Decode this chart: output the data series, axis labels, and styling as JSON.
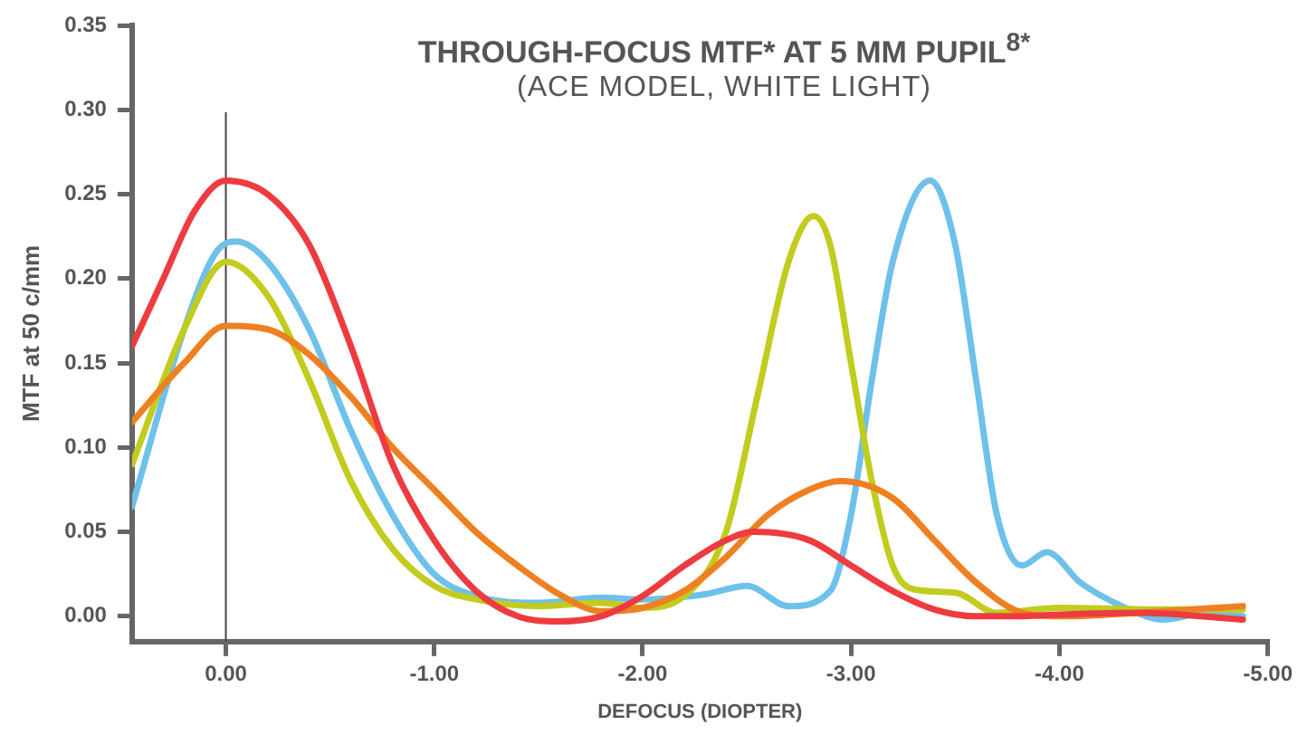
{
  "chart_data": {
    "type": "line",
    "title": "THROUGH-FOCUS MTF* AT 5 MM PUPIL$^{8*}$",
    "subtitle": "(ACE MODEL, WHITE LIGHT)",
    "xlabel": "DEFOCUS (DIOPTER)",
    "ylabel": "MTF at 50 c/mm",
    "xlim": [
      0.45,
      -5
    ],
    "xticks": [
      {
        "value": 0,
        "label": "0.00"
      },
      {
        "value": -1,
        "label": "-1.00"
      },
      {
        "value": -2,
        "label": "-2.00"
      },
      {
        "value": -3,
        "label": "-3.00"
      },
      {
        "value": -4,
        "label": "-4.00"
      },
      {
        "value": -5,
        "label": "-5.00"
      }
    ],
    "ylim": [
      -0.015,
      0.35
    ],
    "yticks": [
      {
        "value": 0,
        "label": "0.00"
      },
      {
        "value": 0.05,
        "label": "0.05"
      },
      {
        "value": 0.1,
        "label": "0.10"
      },
      {
        "value": 0.15,
        "label": "0.15"
      },
      {
        "value": 0.2,
        "label": "0.20"
      },
      {
        "value": 0.25,
        "label": "0.25"
      },
      {
        "value": 0.3,
        "label": "0.30"
      },
      {
        "value": 0.35,
        "label": "0.35"
      }
    ],
    "grid": false,
    "legend": false,
    "marker": "none",
    "line_style": "solid",
    "ref_lines": [
      {
        "axis": "x",
        "value": 0,
        "color": "#444444"
      }
    ],
    "series": [
      {
        "color": "#ee3b40",
        "x": [
          0.45,
          0.3,
          0.15,
          0,
          -0.2,
          -0.4,
          -0.6,
          -0.8,
          -1.0,
          -1.2,
          -1.4,
          -1.6,
          -1.8,
          -2.0,
          -2.2,
          -2.4,
          -2.53,
          -2.8,
          -3.0,
          -3.2,
          -3.4,
          -3.6,
          -3.8,
          -4.0,
          -4.4,
          -4.88
        ],
        "values": [
          0.16,
          0.2,
          0.24,
          0.258,
          0.25,
          0.22,
          0.16,
          0.09,
          0.045,
          0.015,
          0.0,
          -0.003,
          0.0,
          0.012,
          0.03,
          0.045,
          0.05,
          0.045,
          0.03,
          0.015,
          0.004,
          0.0,
          0.0,
          0.001,
          0.002,
          -0.002
        ]
      },
      {
        "color": "#ef8022",
        "x": [
          0.45,
          0.2,
          0,
          -0.2,
          -0.4,
          -0.6,
          -0.8,
          -1.0,
          -1.2,
          -1.4,
          -1.6,
          -1.8,
          -2.0,
          -2.2,
          -2.4,
          -2.6,
          -2.8,
          -2.95,
          -3.2,
          -3.4,
          -3.6,
          -3.8,
          -4.0,
          -4.5,
          -4.88
        ],
        "values": [
          0.115,
          0.15,
          0.172,
          0.17,
          0.155,
          0.13,
          0.1,
          0.075,
          0.05,
          0.03,
          0.013,
          0.003,
          0.005,
          0.015,
          0.035,
          0.06,
          0.075,
          0.08,
          0.07,
          0.045,
          0.02,
          0.003,
          0.0,
          0.003,
          0.006
        ]
      },
      {
        "color": "#c2cc1f",
        "x": [
          0.45,
          0.2,
          0,
          -0.2,
          -0.4,
          -0.6,
          -0.8,
          -1.0,
          -1.2,
          -1.5,
          -1.8,
          -2.0,
          -2.2,
          -2.4,
          -2.55,
          -2.7,
          -2.82,
          -2.9,
          -3.0,
          -3.1,
          -3.2,
          -3.3,
          -3.5,
          -3.7,
          -4.0,
          -4.5,
          -4.88
        ],
        "values": [
          0.09,
          0.17,
          0.21,
          0.19,
          0.14,
          0.08,
          0.04,
          0.018,
          0.01,
          0.006,
          0.008,
          0.005,
          0.012,
          0.05,
          0.13,
          0.21,
          0.237,
          0.22,
          0.15,
          0.08,
          0.03,
          0.016,
          0.014,
          0.002,
          0.005,
          0.004,
          0.004
        ]
      },
      {
        "color": "#6ec1ea",
        "x": [
          0.45,
          0.2,
          0.05,
          -0.05,
          -0.2,
          -0.4,
          -0.6,
          -0.8,
          -1.0,
          -1.2,
          -1.5,
          -1.8,
          -2.0,
          -2.3,
          -2.5,
          -2.7,
          -2.9,
          -3.0,
          -3.1,
          -3.2,
          -3.38,
          -3.5,
          -3.6,
          -3.7,
          -3.82,
          -3.94,
          -4.1,
          -4.3,
          -4.5,
          -4.7,
          -4.88
        ],
        "values": [
          0.065,
          0.17,
          0.215,
          0.222,
          0.21,
          0.17,
          0.11,
          0.06,
          0.025,
          0.012,
          0.008,
          0.011,
          0.01,
          0.013,
          0.018,
          0.006,
          0.015,
          0.06,
          0.14,
          0.21,
          0.258,
          0.22,
          0.14,
          0.06,
          0.03,
          0.038,
          0.02,
          0.006,
          -0.002,
          0.002,
          0.0
        ]
      }
    ]
  }
}
